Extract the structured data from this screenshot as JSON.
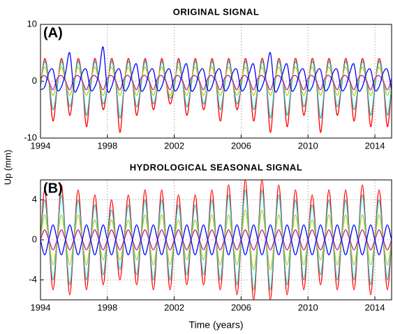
{
  "y_label": "Up (mm)",
  "chart_data": [
    {
      "type": "line",
      "title": "ORIGINAL SIGNAL",
      "panel_label": "(A)",
      "x": [
        1994,
        1994.25,
        1994.5,
        1994.75,
        1995,
        1995.25,
        1995.5,
        1995.75,
        1996,
        1996.25,
        1996.5,
        1996.75,
        1997,
        1997.25,
        1997.5,
        1997.75,
        1998,
        1998.25,
        1998.5,
        1998.75,
        1999,
        1999.25,
        1999.5,
        1999.75,
        2000,
        2000.25,
        2000.5,
        2000.75,
        2001,
        2001.25,
        2001.5,
        2001.75,
        2002,
        2002.25,
        2002.5,
        2002.75,
        2003,
        2003.25,
        2003.5,
        2003.75,
        2004,
        2004.25,
        2004.5,
        2004.75,
        2005,
        2005.25,
        2005.5,
        2005.75,
        2006,
        2006.25,
        2006.5,
        2006.75,
        2007,
        2007.25,
        2007.5,
        2007.75,
        2008,
        2008.25,
        2008.5,
        2008.75,
        2009,
        2009.25,
        2009.5,
        2009.75,
        2010,
        2010.25,
        2010.5,
        2010.75,
        2011,
        2011.25,
        2011.5,
        2011.75,
        2012,
        2012.25,
        2012.5,
        2012.75,
        2013,
        2013.25,
        2013.5,
        2013.75,
        2014,
        2014.25,
        2014.5,
        2014.75,
        2015
      ],
      "xlim": [
        1994,
        2015
      ],
      "xticks": [
        1994,
        1998,
        2002,
        2006,
        2010,
        2014
      ],
      "ylim": [
        -10,
        10
      ],
      "yticks": [
        -10,
        0,
        10
      ],
      "grid": true,
      "series": [
        {
          "color": "#ff0000",
          "values": [
            -1,
            4,
            0,
            -7,
            -1,
            4,
            0,
            -6,
            -1,
            4,
            0,
            -8,
            -1,
            4,
            0,
            -5,
            -1,
            4,
            0,
            -9,
            -1,
            4,
            0,
            -6,
            -1,
            4,
            0,
            -5,
            -1,
            4,
            0,
            -4,
            -1,
            4,
            0,
            -6,
            -1,
            4,
            0,
            -5,
            -1,
            4,
            0,
            -7,
            -1,
            4,
            0,
            -5,
            -1,
            4,
            0,
            -7,
            -1,
            4,
            0,
            -9,
            -1,
            4,
            0,
            -8,
            -1,
            4,
            0,
            -6,
            -1,
            4,
            0,
            -9,
            -1,
            4,
            0,
            -6,
            -1,
            4,
            0,
            -7,
            -1,
            4,
            0,
            -8,
            -1,
            4,
            0,
            -8,
            -1
          ]
        },
        {
          "color": "#1fbdbd",
          "values": [
            -1,
            3.5,
            0,
            -5,
            -1,
            3.5,
            0,
            -4.5,
            -1,
            3.5,
            0,
            -6,
            -1,
            3.5,
            0,
            -4,
            -1,
            3.5,
            0,
            -6.5,
            -1,
            3.5,
            0,
            -4.5,
            -1,
            3.5,
            0,
            -4,
            -1,
            3.5,
            0,
            -3,
            -1,
            3.5,
            0,
            -4.5,
            -1,
            3.5,
            0,
            -4,
            -1,
            3.5,
            0,
            -5,
            -1,
            3.5,
            0,
            -4,
            -1,
            3.5,
            0,
            -5,
            -1,
            3.5,
            0,
            -6.5,
            -1,
            3.5,
            0,
            -6,
            -1,
            3.5,
            0,
            -4.5,
            -1,
            3.5,
            0,
            -6.5,
            -1,
            3.5,
            0,
            -4.5,
            -1,
            3.5,
            0,
            -5,
            -1,
            3.5,
            0,
            -6,
            -1,
            3.5,
            0,
            -6,
            -1
          ]
        },
        {
          "color": "#bcc81e",
          "values": [
            0,
            2.5,
            0,
            -2.5,
            0,
            2.5,
            0,
            -2.5,
            0,
            2.5,
            0,
            -2.5,
            0,
            2.5,
            0,
            -2.5,
            0,
            2.5,
            0,
            -2.5,
            0,
            2.5,
            0,
            -2.5,
            0,
            2.5,
            0,
            -2.5,
            0,
            2.5,
            0,
            -2.5,
            0,
            2.5,
            0,
            -2.5,
            0,
            2.5,
            0,
            -2.5,
            0,
            2.5,
            0,
            -2.5,
            0,
            2.5,
            0,
            -2.5,
            0,
            2.5,
            0,
            -2.5,
            0,
            2.5,
            0,
            -2.5,
            0,
            2.5,
            0,
            -2.5,
            0,
            2.5,
            0,
            -2.5,
            0,
            2.5,
            0,
            -2.5,
            0,
            2.5,
            0,
            -2.5,
            0,
            2.5,
            0,
            -2.5,
            0,
            2.5,
            0,
            -2.5,
            0,
            2.5,
            0,
            -2.5,
            0
          ]
        },
        {
          "color": "#b01fb0",
          "values": [
            0.5,
            1,
            0,
            -1.5,
            0.5,
            1,
            0,
            -1.5,
            0.5,
            1,
            0,
            -1.5,
            0.5,
            1,
            0,
            -1.5,
            0.5,
            1,
            0,
            -1.5,
            0.5,
            1,
            0,
            -1.5,
            0.5,
            1,
            0,
            -1.5,
            0.5,
            1,
            0,
            -1.5,
            0.5,
            1,
            0,
            -1.5,
            0.5,
            1,
            0,
            -1.5,
            0.5,
            1,
            0,
            -1.5,
            0.5,
            1,
            0,
            -1.5,
            0.5,
            1,
            0,
            -1.5,
            0.5,
            1,
            0,
            -1.5,
            0.5,
            1,
            0,
            -1.5,
            0.5,
            1,
            0,
            -1.5,
            0.5,
            1,
            0,
            -1.5,
            0.5,
            1,
            0,
            -1.5,
            0.5,
            1,
            0,
            -1.5,
            0.5,
            1,
            0,
            -1.5,
            0.5,
            1,
            0,
            -1.5,
            0.5
          ]
        },
        {
          "color": "#0000ff",
          "values": [
            -1.5,
            -1,
            1.5,
            2,
            -1.5,
            -1,
            1.5,
            5,
            -1.5,
            -1,
            1.5,
            2,
            -1.5,
            -1,
            1.5,
            6,
            -1.5,
            -1,
            1.5,
            2,
            -1.5,
            -1,
            1.5,
            3,
            -1.5,
            -1,
            1.5,
            2,
            -1.5,
            -1,
            1.5,
            2,
            -1.5,
            -1,
            1.5,
            3,
            -1.5,
            -1,
            1.5,
            2,
            -1.5,
            -1,
            1.5,
            2,
            -1.5,
            -1,
            1.5,
            2,
            -1.5,
            -1,
            1.5,
            3,
            -1.5,
            -1,
            1.5,
            5,
            -1.5,
            -1,
            1.5,
            3,
            -1.5,
            -1,
            1.5,
            2,
            -1.5,
            -1,
            1.5,
            2,
            -1.5,
            -1,
            1.5,
            2,
            -1.5,
            -1,
            1.5,
            3,
            -1.5,
            -1,
            1.5,
            2,
            -1.5,
            -1,
            1.5,
            2,
            -1.5
          ]
        }
      ]
    },
    {
      "type": "line",
      "title": "HYDROLOGICAL SEASONAL SIGNAL",
      "panel_label": "(B)",
      "x_label": "Time (years)",
      "x": [
        1994,
        1994.25,
        1994.5,
        1994.75,
        1995,
        1995.25,
        1995.5,
        1995.75,
        1996,
        1996.25,
        1996.5,
        1996.75,
        1997,
        1997.25,
        1997.5,
        1997.75,
        1998,
        1998.25,
        1998.5,
        1998.75,
        1999,
        1999.25,
        1999.5,
        1999.75,
        2000,
        2000.25,
        2000.5,
        2000.75,
        2001,
        2001.25,
        2001.5,
        2001.75,
        2002,
        2002.25,
        2002.5,
        2002.75,
        2003,
        2003.25,
        2003.5,
        2003.75,
        2004,
        2004.25,
        2004.5,
        2004.75,
        2005,
        2005.25,
        2005.5,
        2005.75,
        2006,
        2006.25,
        2006.5,
        2006.75,
        2007,
        2007.25,
        2007.5,
        2007.75,
        2008,
        2008.25,
        2008.5,
        2008.75,
        2009,
        2009.25,
        2009.5,
        2009.75,
        2010,
        2010.25,
        2010.5,
        2010.75,
        2011,
        2011.25,
        2011.5,
        2011.75,
        2012,
        2012.25,
        2012.5,
        2012.75,
        2013,
        2013.25,
        2013.5,
        2013.75,
        2014,
        2014.25,
        2014.5,
        2014.75,
        2015
      ],
      "xlim": [
        1994,
        2015
      ],
      "xticks": [
        1994,
        1998,
        2002,
        2006,
        2010,
        2014
      ],
      "ylim": [
        -6,
        6
      ],
      "yticks": [
        -4,
        0,
        4
      ],
      "grid": true,
      "series": [
        {
          "color": "#ff0000",
          "values": [
            0,
            5,
            0,
            -5,
            0,
            5.5,
            0,
            -5.5,
            0,
            5,
            0,
            -5,
            0,
            4.5,
            0,
            -4.5,
            0,
            4,
            0,
            -4,
            0,
            4.5,
            0,
            -4.5,
            0,
            5,
            0,
            -5,
            0,
            5,
            0,
            -5,
            0,
            4.5,
            0,
            -4.5,
            0,
            4.5,
            0,
            -4.5,
            0,
            5,
            0,
            -5,
            0,
            5.5,
            0,
            -5.5,
            0,
            6,
            0,
            -6,
            0,
            6,
            0,
            -6,
            0,
            5.5,
            0,
            -5.5,
            0,
            5,
            0,
            -5,
            0,
            4.5,
            0,
            -4.5,
            0,
            5,
            0,
            -5,
            0,
            5,
            0,
            -5,
            0,
            5.5,
            0,
            -5.5,
            0,
            5,
            0,
            -5,
            0
          ]
        },
        {
          "color": "#1fbdbd",
          "values": [
            0,
            4,
            0,
            -4,
            0,
            4.5,
            0,
            -4.5,
            0,
            4,
            0,
            -4,
            0,
            3.5,
            0,
            -3.5,
            0,
            3,
            0,
            -3,
            0,
            3.5,
            0,
            -3.5,
            0,
            4,
            0,
            -4,
            0,
            4,
            0,
            -4,
            0,
            3.5,
            0,
            -3.5,
            0,
            3.5,
            0,
            -3.5,
            0,
            4,
            0,
            -4,
            0,
            4.5,
            0,
            -4.5,
            0,
            5,
            0,
            -5,
            0,
            5,
            0,
            -5,
            0,
            4.5,
            0,
            -4.5,
            0,
            4,
            0,
            -4,
            0,
            3.5,
            0,
            -3.5,
            0,
            4,
            0,
            -4,
            0,
            4,
            0,
            -4,
            0,
            4.5,
            0,
            -4.5,
            0,
            4,
            0,
            -4,
            0
          ]
        },
        {
          "color": "#bcc81e",
          "values": [
            0,
            2.5,
            0,
            -2.5,
            0,
            2.5,
            0,
            -2.5,
            0,
            2.5,
            0,
            -2.5,
            0,
            2,
            0,
            -2,
            0,
            2,
            0,
            -2,
            0,
            2,
            0,
            -2,
            0,
            2.5,
            0,
            -2.5,
            0,
            2.5,
            0,
            -2.5,
            0,
            2,
            0,
            -2,
            0,
            2,
            0,
            -2,
            0,
            2.5,
            0,
            -2.5,
            0,
            2.5,
            0,
            -2.5,
            0,
            3,
            0,
            -3,
            0,
            3,
            0,
            -3,
            0,
            2.5,
            0,
            -2.5,
            0,
            2.5,
            0,
            -2.5,
            0,
            2,
            0,
            -2,
            0,
            2.5,
            0,
            -2.5,
            0,
            2.5,
            0,
            -2.5,
            0,
            2.5,
            0,
            -2.5,
            0,
            2.5,
            0,
            -2.5,
            0
          ]
        },
        {
          "color": "#b01fb0",
          "values": [
            0,
            1,
            0,
            -1,
            0,
            1,
            0,
            -1,
            0,
            1,
            0,
            -1,
            0,
            1,
            0,
            -1,
            0,
            1,
            0,
            -1,
            0,
            1,
            0,
            -1,
            0,
            1,
            0,
            -1,
            0,
            1,
            0,
            -1,
            0,
            1,
            0,
            -1,
            0,
            1,
            0,
            -1,
            0,
            1,
            0,
            -1,
            0,
            1,
            0,
            -1,
            0,
            1,
            0,
            -1,
            0,
            1,
            0,
            -1,
            0,
            1,
            0,
            -1,
            0,
            1,
            0,
            -1,
            0,
            1,
            0,
            -1,
            0,
            1,
            0,
            -1,
            0,
            1,
            0,
            -1,
            0,
            1,
            0,
            -1,
            0,
            1,
            0,
            -1,
            0
          ]
        },
        {
          "color": "#0000ff",
          "values": [
            0,
            -1.5,
            0,
            1.5,
            0,
            -1.5,
            0,
            1.5,
            0,
            -1.5,
            0,
            1.5,
            0,
            -1.5,
            0,
            1.5,
            0,
            -1.5,
            0,
            1.5,
            0,
            -1.5,
            0,
            1.5,
            0,
            -1.5,
            0,
            1.5,
            0,
            -1.5,
            0,
            1.5,
            0,
            -1.5,
            0,
            1.5,
            0,
            -1.5,
            0,
            1.5,
            0,
            -1.5,
            0,
            1.5,
            0,
            -1.5,
            0,
            1.5,
            0,
            -1.5,
            0,
            1.5,
            0,
            -1.5,
            0,
            1.5,
            0,
            -1.5,
            0,
            1.5,
            0,
            -1.5,
            0,
            1.5,
            0,
            -1.5,
            0,
            1.5,
            0,
            -1.5,
            0,
            1.5,
            0,
            -1.5,
            0,
            1.5,
            0,
            -1.5,
            0,
            1.5,
            0,
            -1.5,
            0,
            1.5,
            0
          ]
        }
      ]
    }
  ]
}
